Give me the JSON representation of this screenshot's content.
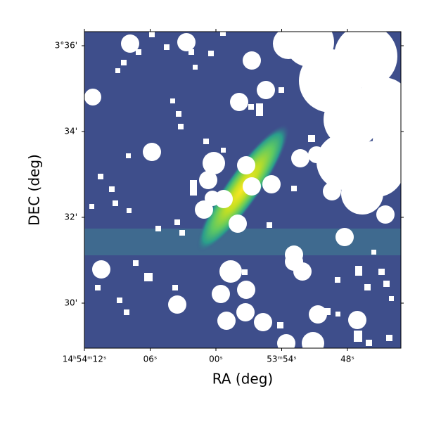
{
  "chart_data": {
    "type": "image",
    "xlabel": "RA (deg)",
    "ylabel": "DEC (deg)",
    "xticks": [
      "14ʰ54ᵐ12ˢ",
      "06ˢ",
      "00ˢ",
      "53ᵐ54ˢ",
      "48ˢ"
    ],
    "yticks": [
      "3°36'",
      "34'",
      "32'",
      "30'"
    ]
  }
}
